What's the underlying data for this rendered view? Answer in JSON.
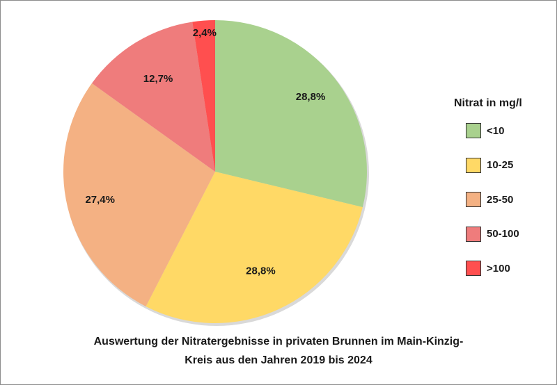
{
  "chart_data": {
    "type": "pie",
    "title_lines": [
      "Auswertung der Nitratergebnisse in privaten Brunnen im Main-Kinzig-",
      "Kreis aus den Jahren 2019 bis 2024"
    ],
    "legend_title": "Nitrat in mg/l",
    "legend_position": "right",
    "slices": [
      {
        "category": "<10",
        "value": 28.8,
        "label": "28,8%",
        "color": "#a9d18e"
      },
      {
        "category": "10-25",
        "value": 28.8,
        "label": "28,8%",
        "color": "#ffd966"
      },
      {
        "category": "25-50",
        "value": 27.4,
        "label": "27,4%",
        "color": "#f4b183"
      },
      {
        "category": "50-100",
        "value": 12.7,
        "label": "12,7%",
        "color": "#ef7c7c"
      },
      {
        "category": ">100",
        "value": 2.4,
        "label": "2,4%",
        "color": "#ff4f4f"
      }
    ]
  }
}
